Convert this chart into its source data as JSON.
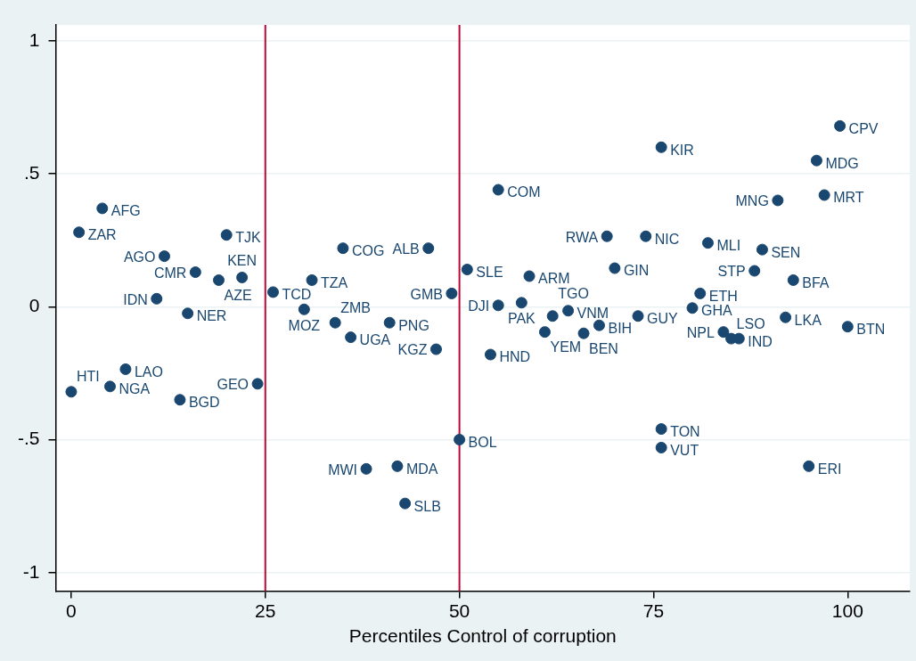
{
  "chart_data": {
    "type": "scatter",
    "xlabel": "Percentiles Control of corruption",
    "x": [
      4,
      1,
      20,
      12,
      16,
      19,
      22,
      31,
      26,
      11,
      15,
      30,
      34,
      36,
      41,
      35,
      46,
      51,
      49,
      55,
      58,
      59,
      55,
      47,
      54,
      61,
      62,
      64,
      66,
      68,
      73,
      70,
      69,
      74,
      76,
      76,
      76,
      82,
      81,
      80,
      84,
      85,
      86,
      89,
      88,
      93,
      92,
      100,
      91,
      97,
      96,
      99,
      95,
      0,
      5,
      7,
      14,
      24,
      50,
      38,
      42,
      43
    ],
    "values": [
      0.37,
      0.28,
      0.27,
      0.19,
      0.13,
      0.1,
      0.11,
      0.1,
      0.055,
      0.03,
      -0.025,
      -0.01,
      -0.06,
      -0.115,
      -0.06,
      0.22,
      0.22,
      0.14,
      0.05,
      0.005,
      0.015,
      0.115,
      0.44,
      -0.16,
      -0.18,
      -0.095,
      -0.035,
      -0.015,
      -0.1,
      -0.07,
      -0.035,
      0.145,
      0.265,
      0.265,
      0.6,
      -0.46,
      -0.53,
      0.24,
      0.05,
      -0.005,
      -0.095,
      -0.12,
      -0.12,
      0.215,
      0.135,
      0.1,
      -0.04,
      -0.075,
      0.4,
      0.42,
      0.55,
      0.68,
      -0.6,
      -0.32,
      -0.3,
      -0.235,
      -0.35,
      -0.29,
      -0.5,
      -0.61,
      -0.6,
      -0.74
    ],
    "value_labels": [
      "AFG",
      "ZAR",
      "TJK",
      "AGO",
      "CMR",
      "AZE",
      "KEN",
      "TZA",
      "TCD",
      "IDN",
      "NER",
      "MOZ",
      "ZMB",
      "UGA",
      "PNG",
      "COG",
      "ALB",
      "SLE",
      "GMB",
      "DJI",
      "PAK",
      "ARM",
      "COM",
      "KGZ",
      "HND",
      "YEM",
      "TGO",
      "VNM",
      "BEN",
      "BIH",
      "GUY",
      "GIN",
      "RWA",
      "NIC",
      "KIR",
      "TON",
      "VUT",
      "MLI",
      "ETH",
      "GHA",
      "NPL",
      "LSO",
      "IND",
      "SEN",
      "STP",
      "BFA",
      "LKA",
      "BTN",
      "MNG",
      "MRT",
      "MDG",
      "CPV",
      "ERI",
      "HTI",
      "NGA",
      "LAO",
      "BGD",
      "GEO",
      "BOL",
      "MWI",
      "MDA",
      "SLB"
    ],
    "color": "#1a476f",
    "marker": "circle",
    "xlim": [
      -2,
      108
    ],
    "ylim": [
      -1.07,
      1.06
    ],
    "xticks": [
      0,
      25,
      50,
      75,
      100
    ],
    "yticks": [
      {
        "value": -1,
        "label": "-1"
      },
      {
        "value": -0.5,
        "label": "-.5"
      },
      {
        "value": 0,
        "label": "0"
      },
      {
        "value": 0.5,
        "label": ".5"
      },
      {
        "value": 1,
        "label": "1"
      }
    ],
    "grid": "y",
    "legend": false,
    "ref_lines": [
      {
        "axis": "x",
        "value": 25,
        "color": "#c10534"
      },
      {
        "axis": "x",
        "value": 50,
        "color": "#c10534"
      }
    ]
  }
}
